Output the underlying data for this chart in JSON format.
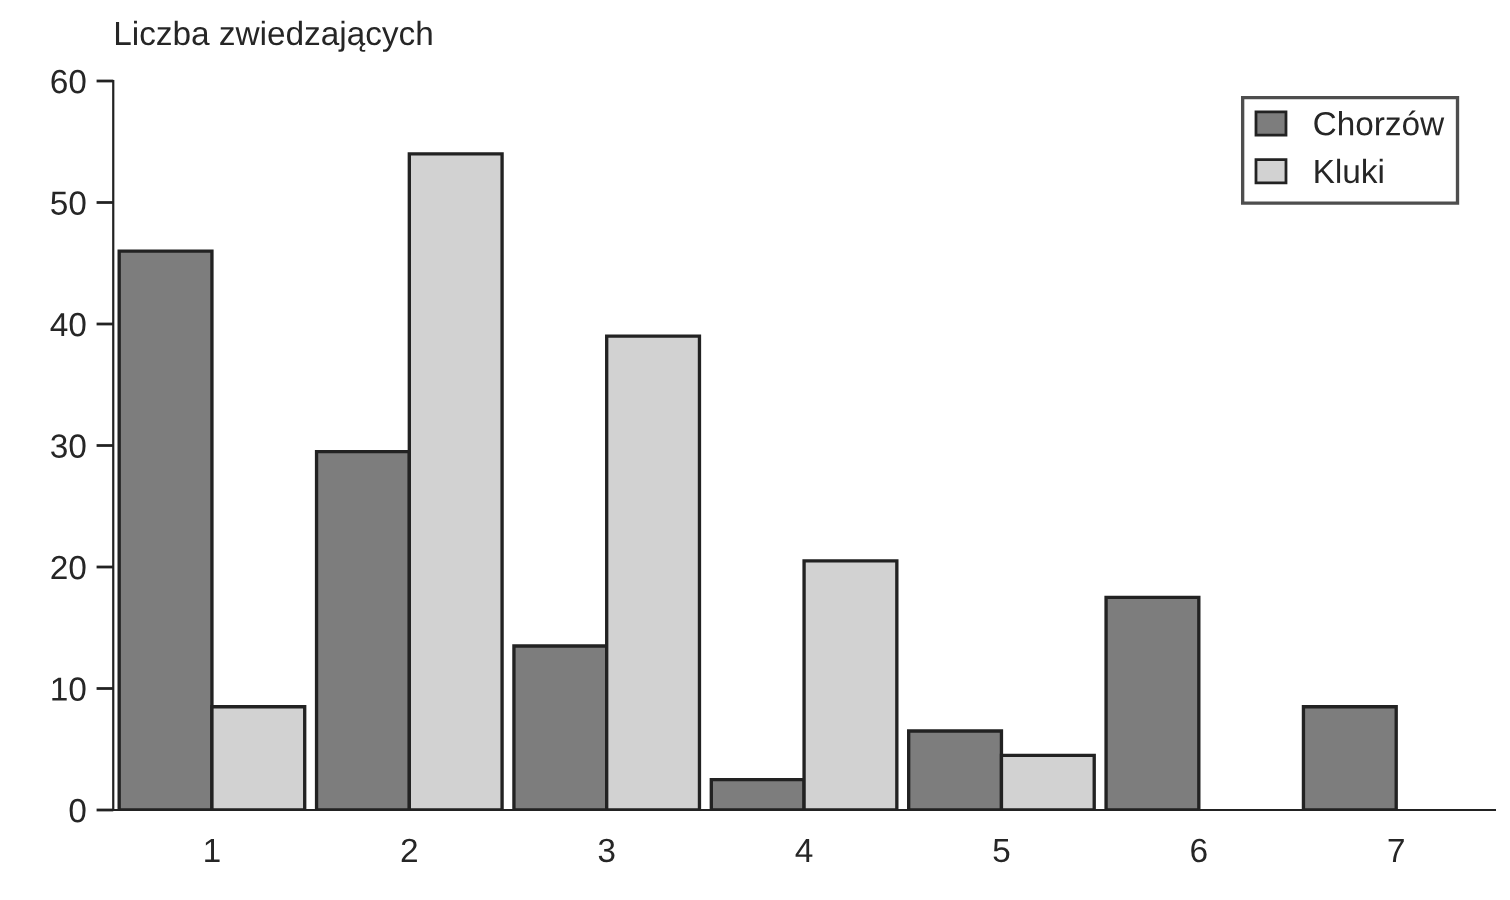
{
  "chart_data": {
    "type": "bar",
    "ylabel": "Liczba zwiedzających",
    "categories": [
      "1",
      "2",
      "3",
      "4",
      "5",
      "6",
      "7"
    ],
    "series": [
      {
        "name": "Chorzów",
        "color": "#7d7d7d",
        "values": [
          46,
          29.5,
          13.5,
          2.5,
          6.5,
          17.5,
          8.5
        ]
      },
      {
        "name": "Kluki",
        "color": "#d2d2d2",
        "values": [
          8.5,
          54,
          39,
          20.5,
          4.5,
          null,
          null
        ]
      }
    ],
    "ylim": [
      0,
      60
    ],
    "yticks": [
      0,
      10,
      20,
      30,
      40,
      50,
      60
    ],
    "grid": false,
    "legend": "top right"
  }
}
